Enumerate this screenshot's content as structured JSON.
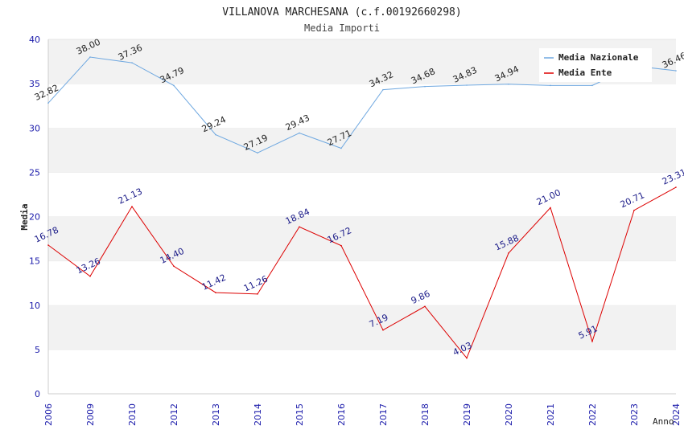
{
  "chart_data": {
    "type": "line",
    "title": "VILLANOVA MARCHESANA (c.f.00192660298)",
    "subtitle": "Media Importi",
    "xlabel": "Anno",
    "ylabel": "Media",
    "ylim": [
      0,
      40
    ],
    "yticks": [
      "0",
      "5",
      "10",
      "15",
      "20",
      "25",
      "30",
      "35",
      "40"
    ],
    "grid": "horizontal bands",
    "legend_position": "top-right",
    "categories": [
      "2006",
      "2009",
      "2010",
      "2012",
      "2013",
      "2014",
      "2015",
      "2016",
      "2017",
      "2018",
      "2019",
      "2020",
      "2021",
      "2022",
      "2023",
      "2024"
    ],
    "series": [
      {
        "name": "Media Nazionale",
        "color": "#6fa8e0",
        "values": [
          32.82,
          38.0,
          37.36,
          34.79,
          29.24,
          27.19,
          29.43,
          27.71,
          34.32,
          34.68,
          34.83,
          34.94,
          34.8,
          34.8,
          37.0,
          36.46
        ],
        "labels": [
          "32.82",
          "38.00",
          "37.36",
          "34.79",
          "29.24",
          "27.19",
          "29.43",
          "27.71",
          "34.32",
          "34.68",
          "34.83",
          "34.94",
          "",
          "",
          "",
          "36.46"
        ]
      },
      {
        "name": "Media Ente",
        "color": "#dd0000",
        "values": [
          16.78,
          13.26,
          21.13,
          14.4,
          11.42,
          11.26,
          18.84,
          16.72,
          7.19,
          9.86,
          4.03,
          15.88,
          21.0,
          5.91,
          20.71,
          23.31
        ],
        "labels": [
          "16.78",
          "13.26",
          "21.13",
          "14.40",
          "11.42",
          "11.26",
          "18.84",
          "16.72",
          "7.19",
          "9.86",
          "4.03",
          "15.88",
          "21.00",
          "5.91",
          "20.71",
          "23.31"
        ]
      }
    ]
  }
}
